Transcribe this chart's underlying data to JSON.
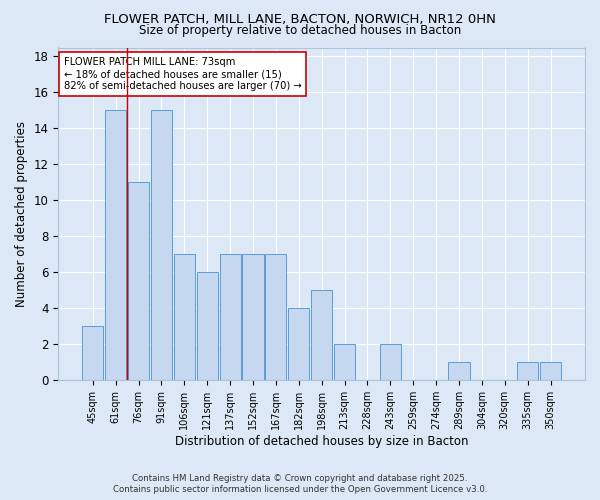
{
  "title_line1": "FLOWER PATCH, MILL LANE, BACTON, NORWICH, NR12 0HN",
  "title_line2": "Size of property relative to detached houses in Bacton",
  "xlabel": "Distribution of detached houses by size in Bacton",
  "ylabel": "Number of detached properties",
  "bar_labels": [
    "45sqm",
    "61sqm",
    "76sqm",
    "91sqm",
    "106sqm",
    "121sqm",
    "137sqm",
    "152sqm",
    "167sqm",
    "182sqm",
    "198sqm",
    "213sqm",
    "228sqm",
    "243sqm",
    "259sqm",
    "274sqm",
    "289sqm",
    "304sqm",
    "320sqm",
    "335sqm",
    "350sqm"
  ],
  "bar_values": [
    3,
    15,
    11,
    15,
    7,
    6,
    7,
    7,
    7,
    4,
    5,
    2,
    0,
    2,
    0,
    0,
    1,
    0,
    0,
    1,
    1
  ],
  "bar_color": "#c5d8f0",
  "bar_edge_color": "#5b9bd5",
  "bg_color": "#dce8f5",
  "grid_color": "#ffffff",
  "annotation_title": "FLOWER PATCH MILL LANE: 73sqm",
  "annotation_line1": "← 18% of detached houses are smaller (15)",
  "annotation_line2": "82% of semi-detached houses are larger (70) →",
  "footer_line1": "Contains HM Land Registry data © Crown copyright and database right 2025.",
  "footer_line2": "Contains public sector information licensed under the Open Government Licence v3.0.",
  "ylim": [
    0,
    18.5
  ],
  "yticks": [
    0,
    2,
    4,
    6,
    8,
    10,
    12,
    14,
    16,
    18
  ]
}
